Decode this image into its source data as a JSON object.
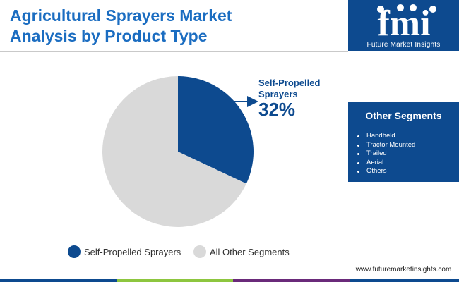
{
  "header": {
    "title_line1": "Agricultural Sprayers Market",
    "title_line2": "Analysis by Product Type"
  },
  "logo": {
    "letters": "fmi",
    "tagline": "Future Market Insights"
  },
  "sidebar": {
    "heading": "Other Segments",
    "items": [
      "Handheld",
      "Tractor Mounted",
      "Trailed",
      "Aerial",
      "Others"
    ]
  },
  "footer": {
    "website": "www.futuremarketinsights.com"
  },
  "callout": {
    "name_line1": "Self-Propelled",
    "name_line2": "Sprayers",
    "value": "32%"
  },
  "colors": {
    "brand_blue": "#0d4a8f",
    "title_blue": "#1b6dc1",
    "pie_gray": "#d9d9d9",
    "bar_blue": "#0d4a8f",
    "bar_green": "#8dc63f",
    "bar_purple": "#6a2a7a"
  },
  "chart_data": {
    "type": "pie",
    "title": "Agricultural Sprayers Market Analysis by Product Type",
    "categories": [
      "Self-Propelled Sprayers",
      "All Other Segments"
    ],
    "values": [
      32,
      68
    ],
    "unit": "%",
    "colors": [
      "#0d4a8f",
      "#d9d9d9"
    ],
    "legend": {
      "position": "bottom",
      "entries": [
        "Self-Propelled Sprayers",
        "All Other Segments"
      ]
    }
  }
}
